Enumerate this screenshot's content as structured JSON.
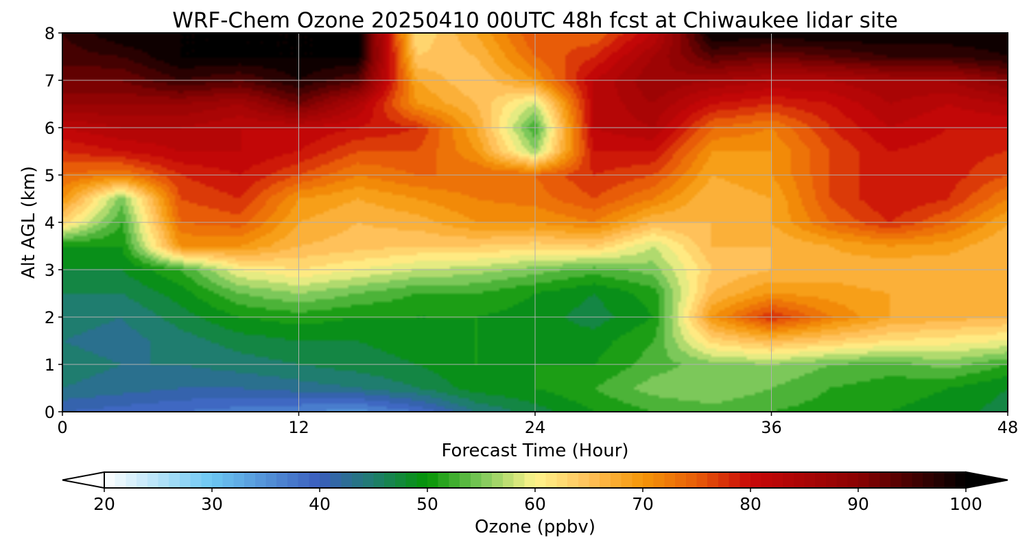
{
  "chart_data": {
    "type": "heatmap",
    "title": "WRF-Chem Ozone  20250410 00UTC 48h fcst at Chiwaukee lidar site",
    "xlabel": "Forecast Time (Hour)",
    "ylabel": "Alt AGL (km)",
    "xlim": [
      0,
      48
    ],
    "ylim": [
      0,
      8
    ],
    "x_ticks": [
      0,
      12,
      24,
      36,
      48
    ],
    "y_ticks": [
      0,
      1,
      2,
      3,
      4,
      5,
      6,
      7,
      8
    ],
    "x_tick_labels": [
      "0",
      "12",
      "24",
      "36",
      "48"
    ],
    "y_tick_labels": [
      "0",
      "1",
      "2",
      "3",
      "4",
      "5",
      "6",
      "7",
      "8"
    ],
    "grid": true,
    "x": [
      0,
      3,
      6,
      9,
      12,
      15,
      18,
      21,
      24,
      27,
      30,
      33,
      36,
      39,
      42,
      45,
      48
    ],
    "y": [
      0,
      0.5,
      1,
      1.5,
      2,
      2.5,
      3,
      3.5,
      4,
      4.5,
      5,
      5.5,
      6,
      6.5,
      7,
      7.5,
      8
    ],
    "z_rows_by_altitude": [
      [
        40,
        39,
        38,
        37,
        36,
        35,
        38,
        44,
        47,
        50,
        52,
        53,
        52,
        51,
        50,
        49,
        47
      ],
      [
        44,
        43,
        42,
        42,
        43,
        44,
        46,
        49,
        50,
        52,
        55,
        56,
        54,
        52,
        51,
        50,
        48
      ],
      [
        45,
        44,
        44,
        45,
        46,
        47,
        48,
        50,
        50,
        50,
        53,
        55,
        56,
        54,
        53,
        55,
        52
      ],
      [
        44,
        43,
        45,
        47,
        48,
        48,
        49,
        50,
        49,
        49,
        52,
        63,
        66,
        64,
        62,
        61,
        60
      ],
      [
        45,
        44,
        47,
        50,
        51,
        50,
        50,
        50,
        49,
        47,
        50,
        70,
        78,
        72,
        68,
        67,
        66
      ],
      [
        46,
        46,
        49,
        54,
        56,
        54,
        52,
        52,
        50,
        48,
        51,
        66,
        70,
        69,
        68,
        67,
        66
      ],
      [
        48,
        48,
        52,
        60,
        62,
        60,
        58,
        57,
        55,
        53,
        55,
        64,
        66,
        67,
        66,
        66,
        66
      ],
      [
        50,
        50,
        70,
        70,
        66,
        65,
        64,
        64,
        63,
        64,
        58,
        66,
        66,
        68,
        70,
        69,
        66
      ],
      [
        63,
        52,
        74,
        75,
        68,
        66,
        67,
        70,
        70,
        72,
        66,
        66,
        68,
        74,
        78,
        74,
        68
      ],
      [
        70,
        55,
        76,
        78,
        70,
        68,
        70,
        72,
        73,
        76,
        72,
        66,
        68,
        76,
        80,
        78,
        72
      ],
      [
        74,
        72,
        78,
        80,
        76,
        72,
        74,
        74,
        74,
        78,
        76,
        68,
        70,
        76,
        80,
        79,
        76
      ],
      [
        78,
        80,
        82,
        82,
        80,
        76,
        76,
        70,
        56,
        80,
        80,
        70,
        70,
        76,
        80,
        79,
        78
      ],
      [
        82,
        84,
        84,
        82,
        82,
        80,
        78,
        68,
        52,
        82,
        84,
        74,
        72,
        78,
        82,
        80,
        80
      ],
      [
        88,
        88,
        88,
        86,
        92,
        84,
        70,
        66,
        58,
        82,
        86,
        80,
        78,
        80,
        84,
        82,
        84
      ],
      [
        92,
        92,
        96,
        94,
        98,
        94,
        68,
        64,
        70,
        82,
        88,
        86,
        84,
        84,
        86,
        86,
        90
      ],
      [
        95,
        96,
        100,
        100,
        100,
        100,
        64,
        66,
        74,
        78,
        86,
        94,
        92,
        94,
        96,
        96,
        98
      ],
      [
        96,
        100,
        100,
        100,
        100,
        100,
        62,
        68,
        76,
        74,
        82,
        100,
        100,
        100,
        100,
        100,
        100
      ]
    ],
    "colorbar": {
      "label": "Ozone  (ppbv)",
      "min": 20,
      "max": 100,
      "ticks": [
        20,
        30,
        40,
        50,
        60,
        70,
        80,
        90,
        100
      ],
      "tick_labels": [
        "20",
        "30",
        "40",
        "50",
        "60",
        "70",
        "80",
        "90",
        "100"
      ],
      "extend": "both",
      "stops": [
        {
          "value": 20,
          "color": "#ffffff"
        },
        {
          "value": 30,
          "color": "#6cc7f3"
        },
        {
          "value": 40,
          "color": "#3a5dbd"
        },
        {
          "value": 45,
          "color": "#1f7d6f"
        },
        {
          "value": 50,
          "color": "#049404"
        },
        {
          "value": 55,
          "color": "#7cc85a"
        },
        {
          "value": 60,
          "color": "#fff48c"
        },
        {
          "value": 65,
          "color": "#ffc15a"
        },
        {
          "value": 70,
          "color": "#f59608"
        },
        {
          "value": 75,
          "color": "#e85c08"
        },
        {
          "value": 80,
          "color": "#c80808"
        },
        {
          "value": 90,
          "color": "#8a0202"
        },
        {
          "value": 100,
          "color": "#000000"
        }
      ],
      "under_color": "#ffffff",
      "over_color": "#000000"
    }
  }
}
